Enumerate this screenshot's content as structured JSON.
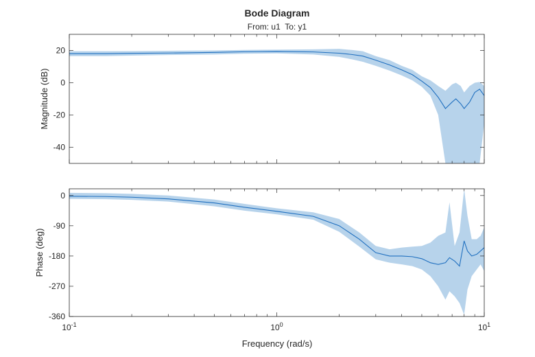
{
  "chart_data": {
    "type": "line",
    "title": "Bode Diagram",
    "subtitle": "From: u1  To: y1",
    "xlabel": "Frequency (rad/s)",
    "xscale": "log",
    "xlim": [
      0.1,
      10
    ],
    "xticks": [
      {
        "value": 0.1,
        "base": "10",
        "exp": "-1"
      },
      {
        "value": 1,
        "base": "10",
        "exp": "0"
      },
      {
        "value": 10,
        "base": "10",
        "exp": "1"
      }
    ],
    "grid": false,
    "colors": {
      "line": "#1f6fbf",
      "band": "#b3d1ea",
      "axis": "#262626"
    },
    "subplots": [
      {
        "ylabel": "Magnitude (dB)",
        "ylim": [
          -50,
          30
        ],
        "yticks": [
          20,
          0,
          -20,
          -40
        ],
        "series": [
          {
            "x": [
              0.1,
              0.15,
              0.2,
              0.3,
              0.5,
              0.7,
              1.0,
              1.5,
              2.0,
              2.3,
              2.6,
              3.0,
              3.5,
              4.0,
              4.5,
              5.0,
              5.5,
              6.0,
              6.5,
              7.0,
              7.3,
              7.7,
              8.0,
              8.5,
              9.0,
              9.5,
              10.0
            ],
            "y": [
              18,
              18,
              18.2,
              18.4,
              18.8,
              19.2,
              19.4,
              19.1,
              18.3,
              17.5,
              16.5,
              14.0,
              11.0,
              8.0,
              5.0,
              1.0,
              -3.0,
              -9.0,
              -16.0,
              -12.0,
              -10.0,
              -13.0,
              -16.0,
              -12.0,
              -6.0,
              -4.0,
              -8.0
            ],
            "lower": [
              16.5,
              16.5,
              16.8,
              17.2,
              17.5,
              18.0,
              18.2,
              17.5,
              16.0,
              14.5,
              13.0,
              10.5,
              7.5,
              4.5,
              1.5,
              -2.5,
              -8.0,
              -20.0,
              -50.0,
              -50.0,
              -50.0,
              -50.0,
              -50.0,
              -50.0,
              -50.0,
              -50.0,
              -25.0
            ],
            "upper": [
              19.5,
              19.5,
              19.6,
              19.8,
              20.0,
              20.3,
              20.5,
              20.7,
              21.0,
              20.3,
              19.5,
              16.5,
              14.0,
              10.5,
              8.0,
              4.0,
              1.5,
              -2.0,
              -5.0,
              -1.0,
              0.0,
              -2.0,
              -6.0,
              -2.0,
              0.0,
              0.5,
              -2.0
            ]
          }
        ]
      },
      {
        "ylabel": "Phase (deg)",
        "ylim": [
          -360,
          20
        ],
        "yticks": [
          0,
          -90,
          -180,
          -270,
          -360
        ],
        "series": [
          {
            "x": [
              0.1,
              0.15,
              0.2,
              0.3,
              0.5,
              0.7,
              1.0,
              1.5,
              2.0,
              2.5,
              3.0,
              3.5,
              4.0,
              4.5,
              5.0,
              5.5,
              6.0,
              6.5,
              6.8,
              7.2,
              7.6,
              8.0,
              8.3,
              8.7,
              9.2,
              9.6,
              10.0
            ],
            "y": [
              -2,
              -3,
              -5,
              -10,
              -22,
              -35,
              -47,
              -62,
              -90,
              -130,
              -170,
              -180,
              -180,
              -182,
              -188,
              -200,
              -205,
              -200,
              -185,
              -195,
              -210,
              -135,
              -165,
              -180,
              -175,
              -165,
              -155
            ],
            "lower": [
              -10,
              -11,
              -13,
              -18,
              -32,
              -45,
              -56,
              -72,
              -108,
              -152,
              -190,
              -200,
              -205,
              -210,
              -220,
              -240,
              -270,
              -310,
              -285,
              -300,
              -320,
              -355,
              -280,
              -240,
              -220,
              -205,
              -225
            ],
            "upper": [
              8,
              7,
              5,
              0,
              -12,
              -25,
              -38,
              -50,
              -70,
              -110,
              -150,
              -160,
              -155,
              -152,
              -150,
              -140,
              -120,
              -110,
              -20,
              -150,
              -110,
              40,
              -60,
              -130,
              -130,
              -120,
              -95
            ]
          }
        ]
      }
    ]
  }
}
